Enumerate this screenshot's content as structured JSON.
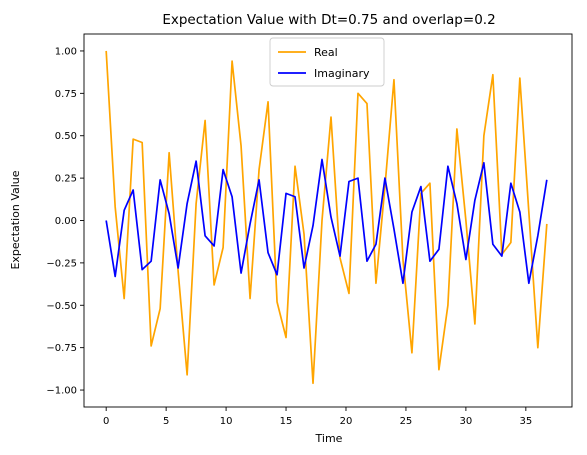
{
  "chart_data": {
    "type": "line",
    "title": "Expectation Value with Dt=0.75 and overlap=0.2",
    "xlabel": "Time",
    "ylabel": "Expectation Value",
    "xlim": [
      -1.85,
      38.85
    ],
    "ylim": [
      -1.1,
      1.1
    ],
    "xticks": [
      0,
      5,
      10,
      15,
      20,
      25,
      30,
      35
    ],
    "xtick_labels": [
      "0",
      "5",
      "10",
      "15",
      "20",
      "25",
      "30",
      "35"
    ],
    "yticks": [
      -1.0,
      -0.75,
      -0.5,
      -0.25,
      0.0,
      0.25,
      0.5,
      0.75,
      1.0
    ],
    "ytick_labels": [
      "−1.00",
      "−0.75",
      "−0.50",
      "−0.25",
      "0.00",
      "0.25",
      "0.50",
      "0.75",
      "1.00"
    ],
    "grid": false,
    "legend": "upper-center",
    "x": [
      0,
      0.75,
      1.5,
      2.25,
      3,
      3.75,
      4.5,
      5.25,
      6,
      6.75,
      7.5,
      8.25,
      9,
      9.75,
      10.5,
      11.25,
      12,
      12.75,
      13.5,
      14.25,
      15,
      15.75,
      16.5,
      17.25,
      18,
      18.75,
      19.5,
      20.25,
      21,
      21.75,
      22.5,
      23.25,
      24,
      24.75,
      25.5,
      26.25,
      27,
      27.75,
      28.5,
      29.25,
      30,
      30.75,
      31.5,
      32.25,
      33,
      33.75,
      34.5,
      35.25,
      36,
      36.75
    ],
    "series": [
      {
        "name": "Real",
        "color": "#ffa500",
        "values": [
          1.0,
          0.08,
          -0.46,
          0.48,
          0.46,
          -0.74,
          -0.52,
          0.4,
          -0.3,
          -0.91,
          0.1,
          0.59,
          -0.38,
          -0.16,
          0.94,
          0.44,
          -0.46,
          0.3,
          0.7,
          -0.48,
          -0.69,
          0.32,
          -0.08,
          -0.96,
          0.0,
          0.61,
          -0.22,
          -0.43,
          0.75,
          0.69,
          -0.37,
          0.2,
          0.83,
          -0.23,
          -0.78,
          0.16,
          0.22,
          -0.88,
          -0.5,
          0.54,
          0.0,
          -0.61,
          0.5,
          0.86,
          -0.2,
          -0.13,
          0.84,
          0.05,
          -0.75,
          -0.02
        ]
      },
      {
        "name": "Imaginary",
        "color": "#0000ff",
        "values": [
          0.0,
          -0.33,
          0.06,
          0.18,
          -0.29,
          -0.24,
          0.24,
          0.04,
          -0.28,
          0.1,
          0.35,
          -0.09,
          -0.15,
          0.3,
          0.14,
          -0.31,
          -0.02,
          0.24,
          -0.19,
          -0.32,
          0.16,
          0.14,
          -0.28,
          -0.03,
          0.36,
          0.02,
          -0.21,
          0.23,
          0.25,
          -0.24,
          -0.14,
          0.25,
          -0.05,
          -0.37,
          0.05,
          0.2,
          -0.24,
          -0.17,
          0.32,
          0.1,
          -0.23,
          0.12,
          0.34,
          -0.14,
          -0.21,
          0.22,
          0.05,
          -0.37,
          -0.09,
          0.24
        ]
      }
    ]
  }
}
